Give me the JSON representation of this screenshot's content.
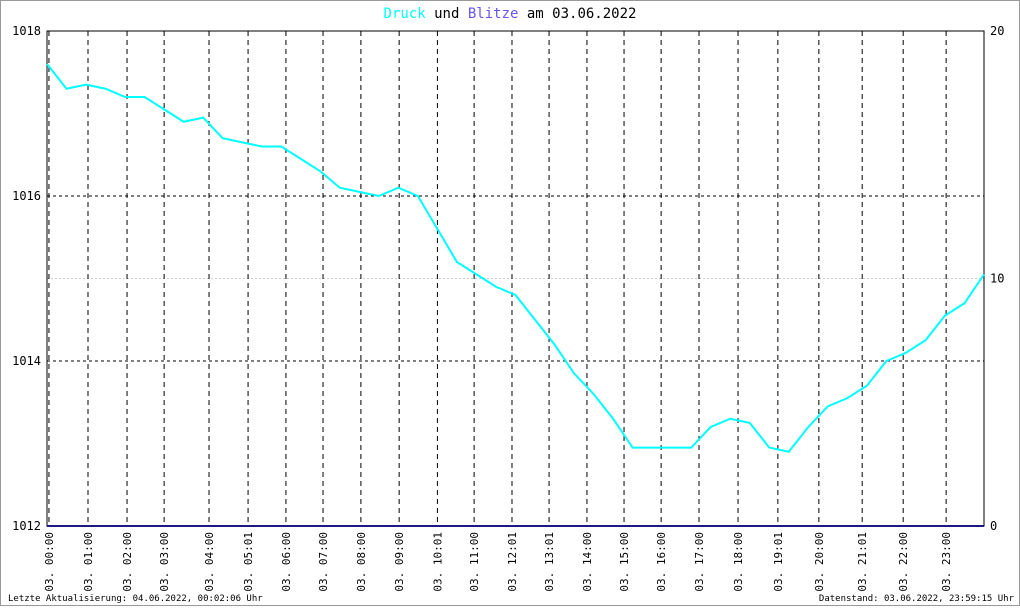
{
  "chart_data": {
    "type": "line",
    "title_parts": [
      "und",
      "am 03.06.2022"
    ],
    "footer_left": "Letzte Aktualisierung: 04.06.2022, 00:02:06 Uhr",
    "footer_right": "Datenstand: 03.06.2022, 23:59:15 Uhr",
    "xlim": [
      0,
      24
    ],
    "xticks": [
      {
        "value": 0.05,
        "label": "03. 00:00"
      },
      {
        "value": 1.05,
        "label": "03. 01:00"
      },
      {
        "value": 2.05,
        "label": "03. 02:00"
      },
      {
        "value": 3.0,
        "label": "03. 03:00"
      },
      {
        "value": 4.15,
        "label": "03. 04:00"
      },
      {
        "value": 5.15,
        "label": "03. 05:01"
      },
      {
        "value": 6.12,
        "label": "03. 06:00"
      },
      {
        "value": 7.07,
        "label": "03. 07:00"
      },
      {
        "value": 8.04,
        "label": "03. 08:00"
      },
      {
        "value": 9.02,
        "label": "03. 09:00"
      },
      {
        "value": 10.0,
        "label": "03. 10:01"
      },
      {
        "value": 10.94,
        "label": "03. 11:00"
      },
      {
        "value": 11.91,
        "label": "03. 12:01"
      },
      {
        "value": 12.86,
        "label": "03. 13:01"
      },
      {
        "value": 13.83,
        "label": "03. 14:00"
      },
      {
        "value": 14.78,
        "label": "03. 15:00"
      },
      {
        "value": 15.73,
        "label": "03. 16:00"
      },
      {
        "value": 16.7,
        "label": "03. 17:00"
      },
      {
        "value": 17.7,
        "label": "03. 18:00"
      },
      {
        "value": 18.72,
        "label": "03. 19:01"
      },
      {
        "value": 19.77,
        "label": "03. 20:00"
      },
      {
        "value": 20.88,
        "label": "03. 21:01"
      },
      {
        "value": 21.93,
        "label": "03. 22:00"
      },
      {
        "value": 23.03,
        "label": "03. 23:00"
      }
    ],
    "ylim": [
      1012,
      1018
    ],
    "yticks": [
      1012,
      1014,
      1016,
      1018
    ],
    "y2lim": [
      0,
      20
    ],
    "y2ticks": [
      0,
      10,
      20
    ],
    "series": [
      {
        "name": "Druck",
        "color": "#00ffff",
        "x": [
          0,
          0.5,
          1,
          1.5,
          2,
          2.5,
          3,
          3.5,
          4,
          4.5,
          5,
          5.5,
          6,
          6.5,
          7,
          7.5,
          8,
          8.5,
          9,
          9.5,
          10,
          10.5,
          11,
          11.5,
          12,
          12.5,
          13,
          13.5,
          14,
          14.5,
          15,
          15.5,
          16,
          16.5,
          17,
          17.5,
          18,
          18.5,
          19,
          19.5,
          20,
          20.5,
          21,
          21.5,
          22,
          22.5,
          23,
          23.5,
          24
        ],
        "values": [
          1017.6,
          1017.3,
          1017.35,
          1017.3,
          1017.2,
          1017.2,
          1017.05,
          1016.9,
          1016.95,
          1016.7,
          1016.65,
          1016.6,
          1016.6,
          1016.45,
          1016.3,
          1016.1,
          1016.05,
          1016.0,
          1016.1,
          1016.0,
          1015.6,
          1015.2,
          1015.05,
          1014.9,
          1014.8,
          1014.5,
          1014.2,
          1013.85,
          1013.6,
          1013.3,
          1012.95,
          1012.95,
          1012.95,
          1012.95,
          1013.2,
          1013.3,
          1013.25,
          1012.95,
          1012.9,
          1013.2,
          1013.45,
          1013.55,
          1013.7,
          1014.0,
          1014.1,
          1014.25,
          1014.55,
          1014.7,
          1015.05
        ]
      },
      {
        "name": "Blitze",
        "color": "#1a1a80",
        "axis": "y2",
        "x": [
          0,
          24
        ],
        "values": [
          0,
          0
        ]
      }
    ]
  }
}
